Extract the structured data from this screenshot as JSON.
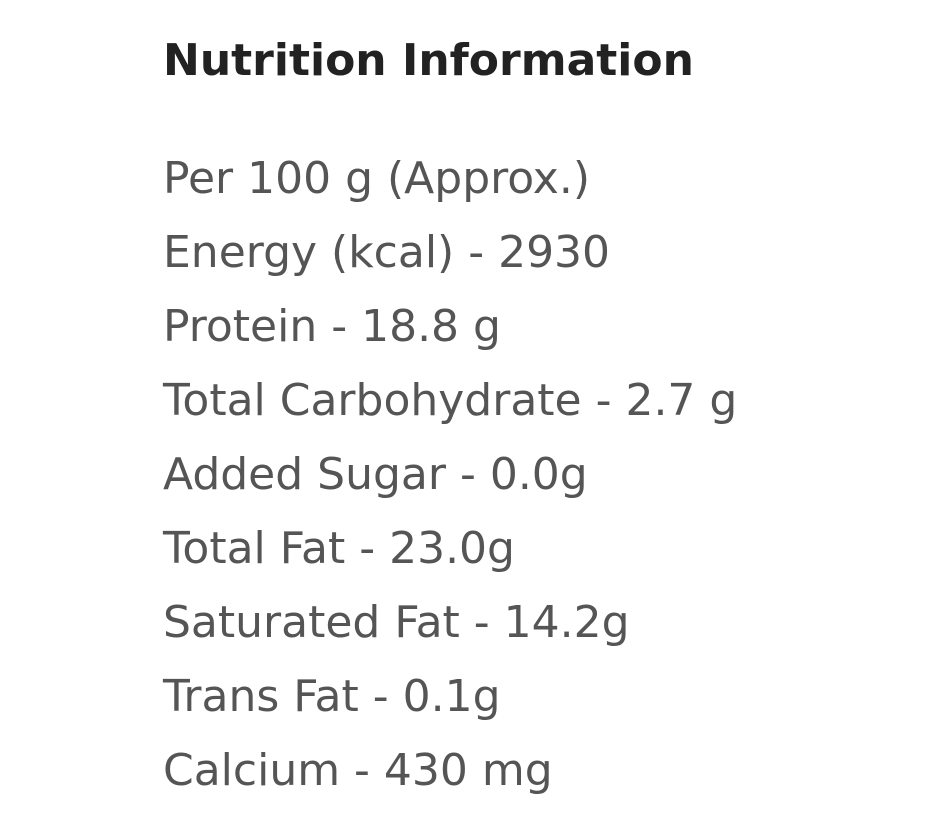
{
  "title": "Nutrition Information",
  "items": [
    "Per 100 g (Approx.)",
    "Energy (kcal) - 2930",
    "Protein - 18.8 g",
    "Total Carbohydrate - 2.7 g",
    "Added Sugar - 0.0g",
    "Total Fat - 23.0g",
    "Saturated Fat - 14.2g",
    "Trans Fat - 0.1g",
    "Calcium - 430 mg"
  ]
}
